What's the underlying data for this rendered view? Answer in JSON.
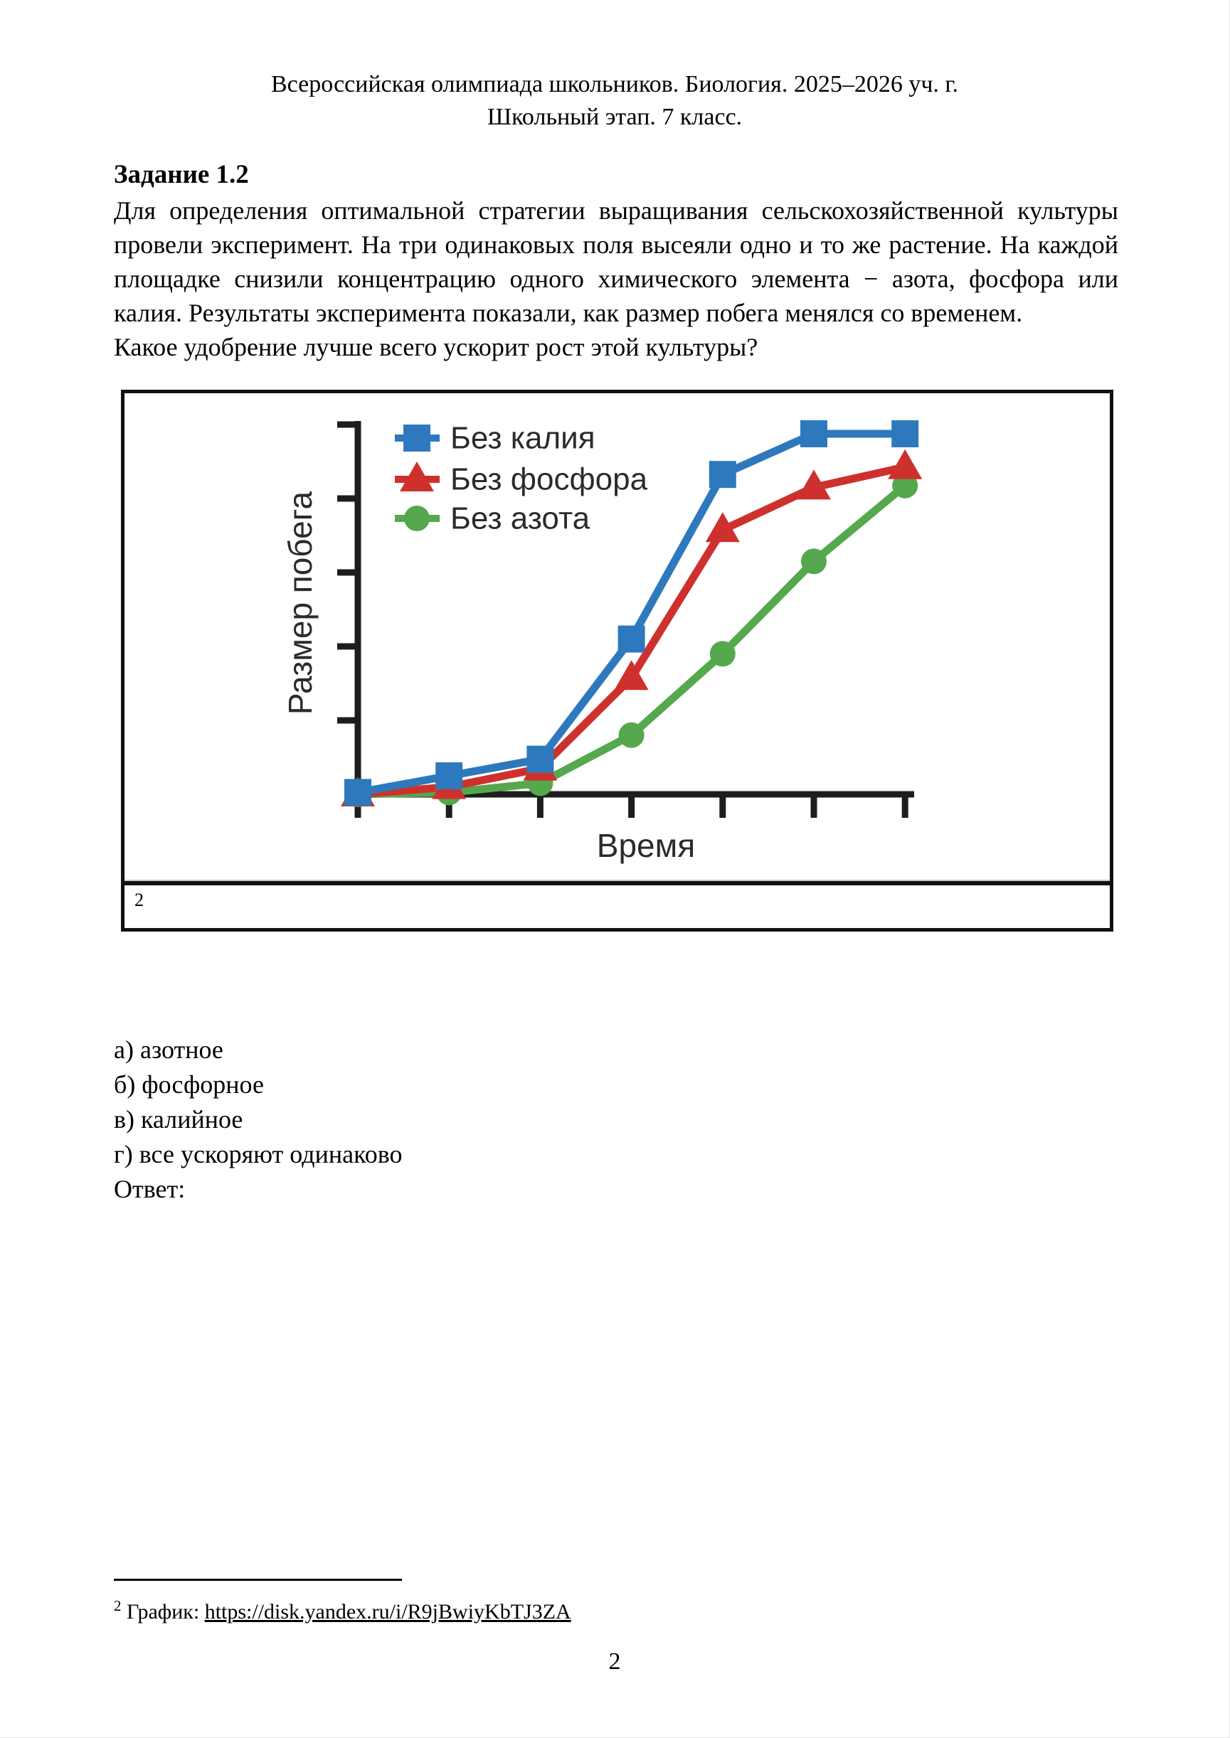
{
  "header": {
    "line1": "Всероссийская олимпиада школьников. Биология. 2025–2026 уч. г.",
    "line2": "Школьный этап. 7 класс."
  },
  "task": {
    "title": "Задание 1.2",
    "paragraph": "Для определения оптимальной стратегии выращивания сельскохозяйственной культуры провели эксперимент. На три одинаковых поля высеяли одно и то же растение. На каждой площадке снизили концентрацию одного химического элемента − азота, фосфора или калия. Результаты эксперимента показали, как размер побега менялся со временем.",
    "question": "Какое удобрение лучше всего ускорит рост этой культуры?"
  },
  "figure": {
    "footnote_marker": "2"
  },
  "chart_data": {
    "type": "line",
    "title": "",
    "xlabel": "Время",
    "ylabel": "Размер побега",
    "x": [
      0,
      1,
      2,
      3,
      4,
      5,
      6
    ],
    "series": [
      {
        "name": "Без азота",
        "marker": "circle",
        "color": "#55A84D",
        "values": [
          0.0,
          0.05,
          0.3,
          1.6,
          3.8,
          6.3,
          8.35
        ]
      },
      {
        "name": "Без фосфора",
        "marker": "triangle",
        "color": "#CE312D",
        "values": [
          0.0,
          0.2,
          0.7,
          3.15,
          7.15,
          8.3,
          8.85
        ]
      },
      {
        "name": "Без калия",
        "marker": "square",
        "color": "#2E79BE",
        "values": [
          0.05,
          0.5,
          0.95,
          4.2,
          8.65,
          9.75,
          9.75
        ]
      }
    ],
    "legend_order": [
      "Без калия",
      "Без фосфора",
      "Без азота"
    ],
    "ylim": [
      0,
      10
    ],
    "x_ticks_count": 7,
    "y_ticks_count": 5,
    "tick_labels_shown": false,
    "grid": false,
    "legend_position": "top-left",
    "axis_color": "#1d1d1d"
  },
  "options": [
    "а) азотное",
    "б) фосфорное",
    "в) калийное",
    "г) все ускоряют одинаково"
  ],
  "answer_label": "Ответ:",
  "footnote": {
    "marker": "2",
    "label": "График:",
    "link": "https://disk.yandex.ru/i/R9jBwiyKbTJ3ZA"
  },
  "page_number": "2"
}
